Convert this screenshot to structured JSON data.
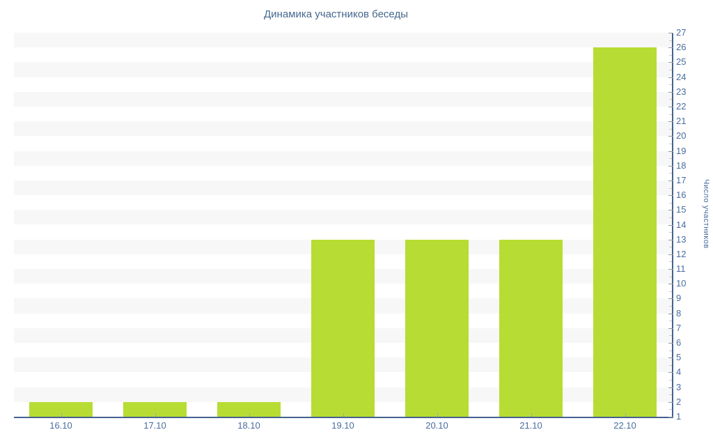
{
  "title": "Динамика участников беседы",
  "colors": {
    "bar": "#b7dc33",
    "stripe": "#f7f7f7",
    "axis_line": "#44618f",
    "label_text": "#4a6c9e",
    "title_text": "#45688e",
    "major_tick": "#8f9aa8",
    "minor_tick": "#c9c9c9",
    "background": "#ffffff"
  },
  "chart_data": {
    "type": "bar",
    "title": "Динамика участников беседы",
    "categories": [
      "16.10",
      "17.10",
      "18.10",
      "19.10",
      "20.10",
      "21.10",
      "22.10"
    ],
    "values": [
      2,
      2,
      2,
      13,
      13,
      13,
      26
    ],
    "xlabel": "",
    "ylabel": "Число участников",
    "ylim": [
      1,
      27
    ],
    "ytick_step": 1,
    "yminor_step": 0.5,
    "yaxis_side": "right",
    "grid": "alternating-horizontal-bands",
    "legend": "none"
  }
}
